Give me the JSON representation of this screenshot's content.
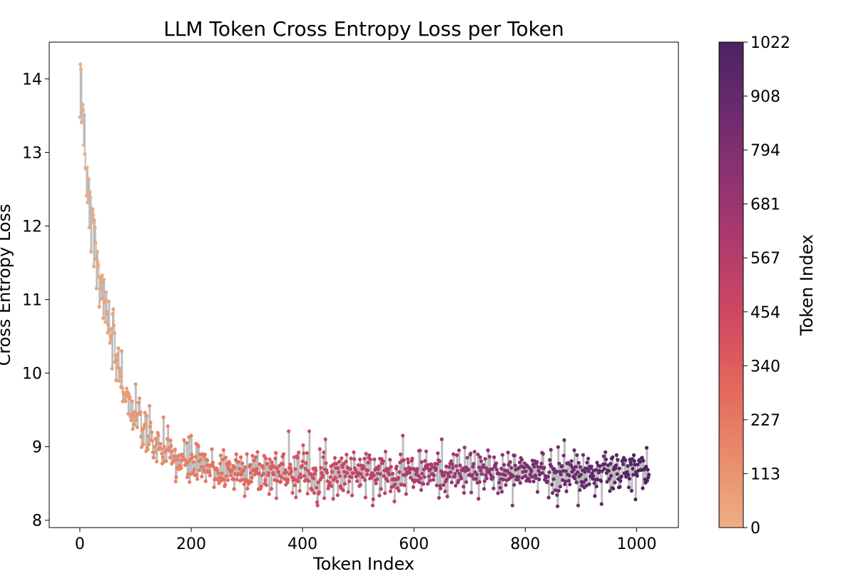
{
  "chart_data": {
    "type": "scatter",
    "title": "LLM Token Cross Entropy Loss per Token",
    "xlabel": "Token Index",
    "ylabel": "Cross Entropy Loss",
    "xlim": [
      -55,
      1075
    ],
    "ylim": [
      7.9,
      14.5
    ],
    "xticks": [
      0,
      200,
      400,
      600,
      800,
      1000
    ],
    "yticks": [
      8,
      9,
      10,
      11,
      12,
      13,
      14
    ],
    "grid": false,
    "n_points": 1023,
    "series": [
      {
        "name": "loss",
        "marker": "circle",
        "connector": "vertical-drop-line",
        "connector_color": "#bbbbbb",
        "model": "loss ≈ 8.65 + 5.55·exp(-index/50), with noise",
        "anchor_points": [
          {
            "x": 0,
            "y": 13.48
          },
          {
            "x": 1,
            "y": 14.2
          },
          {
            "x": 2,
            "y": 14.13
          },
          {
            "x": 3,
            "y": 13.41
          },
          {
            "x": 5,
            "y": 13.65
          },
          {
            "x": 7,
            "y": 13.1
          },
          {
            "x": 9,
            "y": 12.98
          },
          {
            "x": 10,
            "y": 12.79
          },
          {
            "x": 12,
            "y": 12.41
          },
          {
            "x": 14,
            "y": 12.32
          },
          {
            "x": 17,
            "y": 11.98
          },
          {
            "x": 20,
            "y": 11.65
          },
          {
            "x": 25,
            "y": 11.45
          },
          {
            "x": 30,
            "y": 11.15
          },
          {
            "x": 35,
            "y": 10.9
          },
          {
            "x": 40,
            "y": 11.33
          },
          {
            "x": 50,
            "y": 10.55
          },
          {
            "x": 60,
            "y": 10.87
          },
          {
            "x": 75,
            "y": 10.3
          },
          {
            "x": 100,
            "y": 9.85
          },
          {
            "x": 150,
            "y": 9.4
          },
          {
            "x": 200,
            "y": 9.15
          },
          {
            "x": 226,
            "y": 8.53
          },
          {
            "x": 300,
            "y": 8.9
          },
          {
            "x": 325,
            "y": 8.44
          },
          {
            "x": 375,
            "y": 9.21
          },
          {
            "x": 400,
            "y": 8.8
          },
          {
            "x": 412,
            "y": 9.21
          },
          {
            "x": 500,
            "y": 8.75
          },
          {
            "x": 580,
            "y": 9.15
          },
          {
            "x": 600,
            "y": 8.7
          },
          {
            "x": 700,
            "y": 8.62
          },
          {
            "x": 800,
            "y": 8.6
          },
          {
            "x": 858,
            "y": 8.19
          },
          {
            "x": 870,
            "y": 9.09
          },
          {
            "x": 900,
            "y": 8.62
          },
          {
            "x": 937,
            "y": 8.22
          },
          {
            "x": 1000,
            "y": 8.62
          },
          {
            "x": 1022,
            "y": 8.62
          }
        ]
      }
    ],
    "colorbar": {
      "label": "Token Index",
      "colormap": "flare",
      "range": [
        0,
        1022
      ],
      "ticks": [
        "0",
        "113",
        "227",
        "340",
        "454",
        "567",
        "681",
        "794",
        "908",
        "1022"
      ],
      "colors": [
        "#edaf83",
        "#e98d6b",
        "#e3685c",
        "#d14a61",
        "#b13c6c",
        "#8f3371",
        "#6c2b6d",
        "#4b2362"
      ]
    }
  }
}
